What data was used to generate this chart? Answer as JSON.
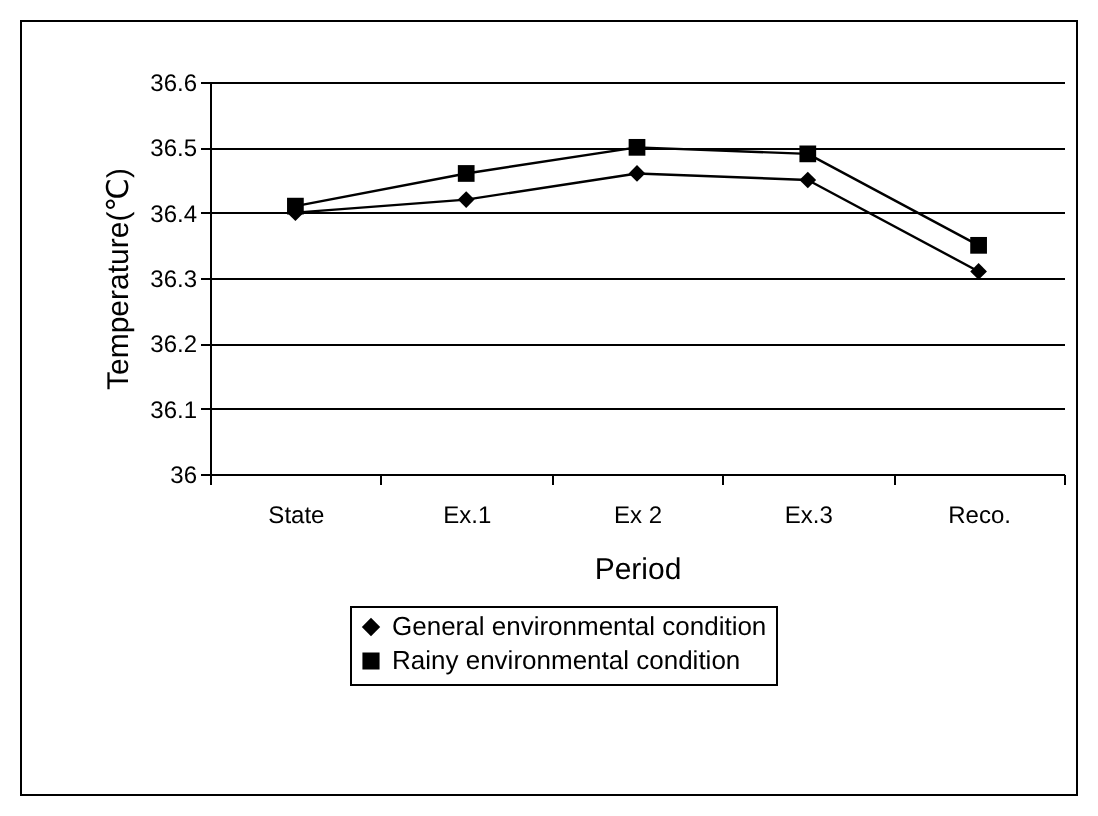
{
  "chart_data": {
    "type": "line",
    "xlabel": "Period",
    "ylabel": "Temperature(℃)",
    "categories": [
      "State",
      "Ex.1",
      "Ex 2",
      "Ex.3",
      "Reco."
    ],
    "series": [
      {
        "name": "General environmental condition",
        "color": "#000000",
        "marker": "diamond",
        "values": [
          36.4,
          36.42,
          36.46,
          36.45,
          36.31
        ]
      },
      {
        "name": "Rainy environmental condition",
        "color": "#000000",
        "marker": "square",
        "values": [
          36.41,
          36.46,
          36.5,
          36.49,
          36.35
        ]
      }
    ],
    "ylim": [
      36,
      36.6
    ],
    "yticks": [
      36,
      36.1,
      36.2,
      36.3,
      36.4,
      36.5,
      36.6
    ],
    "grid": "y",
    "legend": "bottom",
    "line_style": "solid"
  }
}
